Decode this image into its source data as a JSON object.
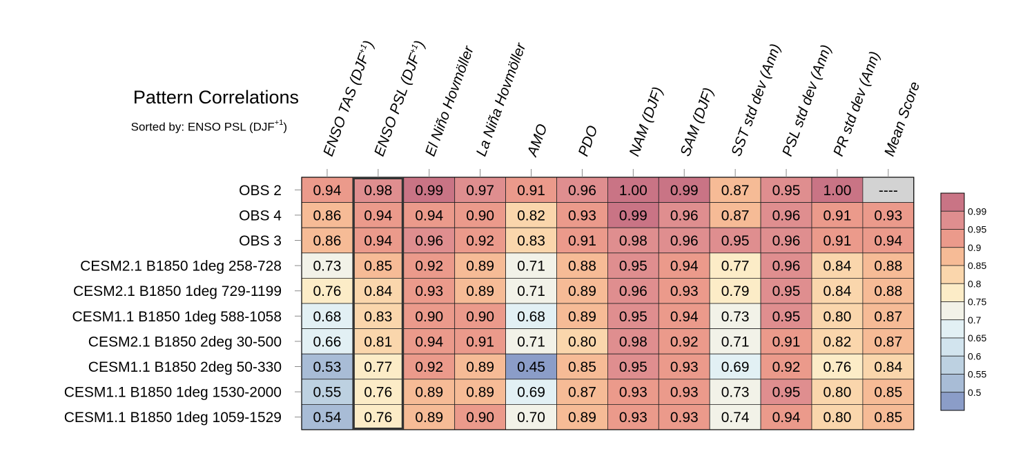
{
  "chart_data": {
    "type": "heatmap",
    "title": "Pattern Correlations",
    "subtitle": "Sorted by: ENSO PSL (DJF",
    "subtitle_superscript": "+1",
    "subtitle_close": ")",
    "columns": [
      {
        "label": "ENSO TAS (DJF",
        "sup": "+1",
        "close": ")"
      },
      {
        "label": "ENSO PSL (DJF",
        "sup": "+1",
        "close": ")"
      },
      {
        "label": "El Niño Hovmöller"
      },
      {
        "label": "La Niña Hovmöller"
      },
      {
        "label": "AMO"
      },
      {
        "label": "PDO"
      },
      {
        "label": "NAM (DJF)"
      },
      {
        "label": "SAM (DJF)"
      },
      {
        "label": "SST std dev (Ann)"
      },
      {
        "label": "PSL std dev (Ann)"
      },
      {
        "label": "PR std dev (Ann)"
      },
      {
        "label": "Mean Score"
      }
    ],
    "rows": [
      {
        "label": "OBS 2",
        "values": [
          "0.94",
          "0.98",
          "0.99",
          "0.97",
          "0.91",
          "0.96",
          "1.00",
          "0.99",
          "0.87",
          "0.95",
          "1.00",
          "----"
        ]
      },
      {
        "label": "OBS 4",
        "values": [
          "0.86",
          "0.94",
          "0.94",
          "0.90",
          "0.82",
          "0.93",
          "0.99",
          "0.96",
          "0.87",
          "0.96",
          "0.91",
          "0.93"
        ]
      },
      {
        "label": "OBS 3",
        "values": [
          "0.86",
          "0.94",
          "0.96",
          "0.92",
          "0.83",
          "0.91",
          "0.98",
          "0.96",
          "0.95",
          "0.96",
          "0.91",
          "0.94"
        ]
      },
      {
        "label": "CESM2.1 B1850 1deg 258-728",
        "values": [
          "0.73",
          "0.85",
          "0.92",
          "0.89",
          "0.71",
          "0.88",
          "0.95",
          "0.94",
          "0.77",
          "0.96",
          "0.84",
          "0.88"
        ]
      },
      {
        "label": "CESM2.1 B1850 1deg 729-1199",
        "values": [
          "0.76",
          "0.84",
          "0.93",
          "0.89",
          "0.71",
          "0.89",
          "0.96",
          "0.93",
          "0.79",
          "0.95",
          "0.84",
          "0.88"
        ]
      },
      {
        "label": "CESM1.1 B1850 1deg 588-1058",
        "values": [
          "0.68",
          "0.83",
          "0.90",
          "0.90",
          "0.68",
          "0.89",
          "0.95",
          "0.94",
          "0.73",
          "0.95",
          "0.80",
          "0.87"
        ]
      },
      {
        "label": "CESM2.1 B1850 2deg 30-500",
        "values": [
          "0.66",
          "0.81",
          "0.94",
          "0.91",
          "0.71",
          "0.80",
          "0.98",
          "0.92",
          "0.71",
          "0.91",
          "0.82",
          "0.87"
        ]
      },
      {
        "label": "CESM1.1 B1850 2deg 50-330",
        "values": [
          "0.53",
          "0.77",
          "0.92",
          "0.89",
          "0.45",
          "0.85",
          "0.95",
          "0.93",
          "0.69",
          "0.92",
          "0.76",
          "0.84"
        ]
      },
      {
        "label": "CESM1.1 B1850 1deg 1530-2000",
        "values": [
          "0.55",
          "0.76",
          "0.89",
          "0.89",
          "0.69",
          "0.87",
          "0.93",
          "0.93",
          "0.73",
          "0.95",
          "0.80",
          "0.85"
        ]
      },
      {
        "label": "CESM1.1 B1850 1deg 1059-1529",
        "values": [
          "0.54",
          "0.76",
          "0.89",
          "0.90",
          "0.70",
          "0.89",
          "0.93",
          "0.93",
          "0.74",
          "0.94",
          "0.80",
          "0.85"
        ]
      }
    ],
    "highlighted_column": "ENSO PSL (DJF+1)",
    "missing_color": "#d3d3d3",
    "colorbar": {
      "levels": [
        "0.5",
        "0.55",
        "0.6",
        "0.65",
        "0.7",
        "0.75",
        "0.8",
        "0.85",
        "0.9",
        "0.95",
        "0.99"
      ],
      "colors": [
        "#8b9dc8",
        "#a8bcd6",
        "#bdd1e1",
        "#d2e4ee",
        "#e2f0f4",
        "#f2f2e8",
        "#fcecc7",
        "#fad6ac",
        "#f6bb96",
        "#eb9a8b",
        "#df8e8f",
        "#c97485"
      ]
    }
  }
}
